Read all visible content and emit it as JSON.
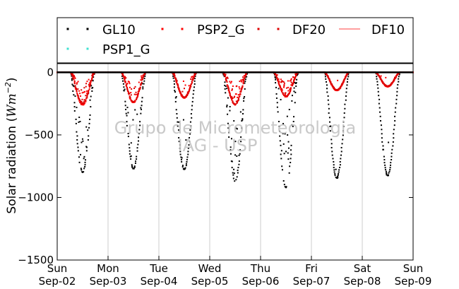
{
  "chart_data": {
    "type": "scatter",
    "title": "",
    "ylabel": "Solar radiation ($Wm^{-2}$)",
    "ylabel_parts": [
      "Solar radiation (",
      "Wm",
      "−2",
      ")"
    ],
    "ylim": [
      -1500,
      70
    ],
    "yticks": [
      0,
      -500,
      -1000,
      -1500
    ],
    "ytick_labels": [
      "0",
      "−500",
      "−1000",
      "−1500"
    ],
    "xlim": [
      "2018-09-02",
      "2018-09-09"
    ],
    "x_ticks": [
      {
        "date": "2018-09-02",
        "day": "Sun",
        "label": "Sep-02"
      },
      {
        "date": "2018-09-03",
        "day": "Mon",
        "label": "Sep-03"
      },
      {
        "date": "2018-09-04",
        "day": "Tue",
        "label": "Sep-04"
      },
      {
        "date": "2018-09-05",
        "day": "Wed",
        "label": "Sep-05"
      },
      {
        "date": "2018-09-06",
        "day": "Thu",
        "label": "Sep-06"
      },
      {
        "date": "2018-09-07",
        "day": "Fri",
        "label": "Sep-07"
      },
      {
        "date": "2018-09-08",
        "day": "Sat",
        "label": "Sep-08"
      },
      {
        "date": "2018-09-09",
        "day": "Sun",
        "label": "Sep-09"
      }
    ],
    "grid": "vertical",
    "legend_placement": "top",
    "watermark": [
      "Grupo de Micrometeorologia",
      "IAG - USP"
    ],
    "series": [
      {
        "name": "GL10",
        "style": "dots",
        "color": "#000000",
        "days": [
          {
            "date": "2018-09-02",
            "peak": -800,
            "ragged": 0.9
          },
          {
            "date": "2018-09-03",
            "peak": -770,
            "ragged": 0.7
          },
          {
            "date": "2018-09-04",
            "peak": -775,
            "ragged": 0.2
          },
          {
            "date": "2018-09-05",
            "peak": -870,
            "ragged": 1.0
          },
          {
            "date": "2018-09-06",
            "peak": -920,
            "ragged": 0.9
          },
          {
            "date": "2018-09-07",
            "peak": -845,
            "ragged": 0.1
          },
          {
            "date": "2018-09-08",
            "peak": -825,
            "ragged": 0.05
          }
        ]
      },
      {
        "name": "PSP2_G",
        "style": "dots",
        "color": "#ff0000",
        "days": [
          {
            "date": "2018-09-02",
            "peak": -260,
            "ragged": 0.9
          },
          {
            "date": "2018-09-03",
            "peak": -240,
            "ragged": 0.8
          },
          {
            "date": "2018-09-04",
            "peak": -205,
            "ragged": 0.3
          },
          {
            "date": "2018-09-05",
            "peak": -260,
            "ragged": 0.9
          },
          {
            "date": "2018-09-06",
            "peak": -195,
            "ragged": 0.8
          },
          {
            "date": "2018-09-07",
            "peak": -145,
            "ragged": 0.1
          },
          {
            "date": "2018-09-08",
            "peak": -115,
            "ragged": 0.05
          }
        ]
      },
      {
        "name": "DF20",
        "style": "dots",
        "color": "#dd0000",
        "days": [
          {
            "date": "2018-09-02",
            "peak": -250,
            "ragged": 0.8
          },
          {
            "date": "2018-09-03",
            "peak": -235,
            "ragged": 0.8
          },
          {
            "date": "2018-09-04",
            "peak": -200,
            "ragged": 0.3
          },
          {
            "date": "2018-09-05",
            "peak": -255,
            "ragged": 0.9
          },
          {
            "date": "2018-09-06",
            "peak": -190,
            "ragged": 0.8
          },
          {
            "date": "2018-09-07",
            "peak": -140,
            "ragged": 0.1
          },
          {
            "date": "2018-09-08",
            "peak": -110,
            "ragged": 0.05
          }
        ]
      },
      {
        "name": "DF10",
        "style": "line",
        "color": "#ff6666",
        "days": []
      },
      {
        "name": "PSP1_G",
        "style": "dots",
        "color": "#40e0d0",
        "days": []
      }
    ]
  }
}
